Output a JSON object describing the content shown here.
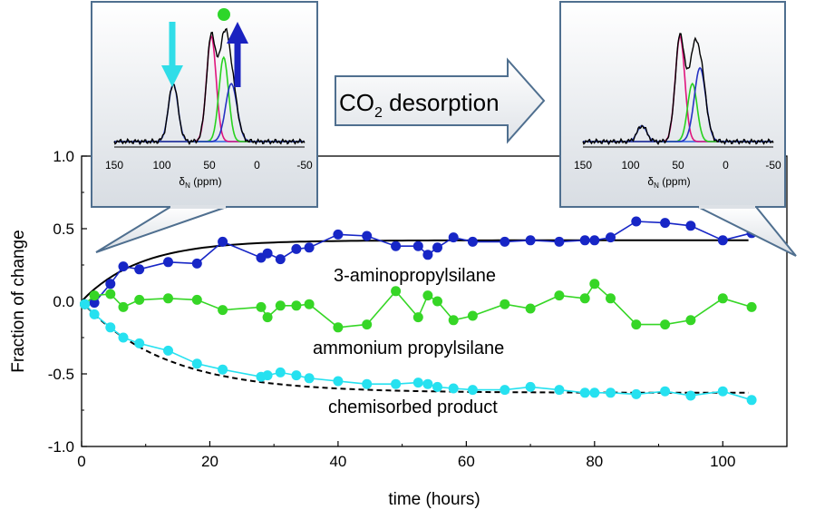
{
  "chart_data": {
    "type": "scatter",
    "xlabel": "time (hours)",
    "ylabel": "Fraction of change",
    "xlim": [
      0,
      110
    ],
    "ylim": [
      -1.0,
      1.0
    ],
    "xticks": [
      0,
      20,
      40,
      60,
      80,
      100
    ],
    "yticks": [
      -1.0,
      -0.5,
      0.0,
      0.5,
      1.0
    ],
    "xtick_labels": [
      "0",
      "20",
      "40",
      "60",
      "80",
      "100"
    ],
    "ytick_labels": [
      "-1.0",
      "-0.5",
      "0.0",
      "0.5",
      "1.0"
    ],
    "series": [
      {
        "name": "3-aminopropylsilane",
        "color": "#1726c6",
        "x": [
          0.5,
          2,
          4.5,
          6.5,
          9,
          13.5,
          18,
          22,
          28,
          29,
          31,
          33.5,
          35.5,
          40,
          44.5,
          49,
          52.5,
          54,
          55.5,
          58,
          61,
          66,
          70,
          74.5,
          78.5,
          80,
          82.5,
          86.5,
          91,
          95,
          100,
          104.5
        ],
        "y": [
          -0.02,
          -0.01,
          0.12,
          0.24,
          0.22,
          0.27,
          0.26,
          0.41,
          0.3,
          0.33,
          0.29,
          0.36,
          0.37,
          0.46,
          0.45,
          0.38,
          0.38,
          0.32,
          0.37,
          0.44,
          0.41,
          0.41,
          0.42,
          0.41,
          0.42,
          0.42,
          0.44,
          0.55,
          0.54,
          0.52,
          0.42,
          0.47
        ]
      },
      {
        "name": "ammonium propylsilane",
        "color": "#36d626",
        "x": [
          0.5,
          2,
          4.5,
          6.5,
          9,
          13.5,
          18,
          22,
          28,
          29,
          31,
          33.5,
          35.5,
          40,
          44.5,
          49,
          52.5,
          54,
          55.5,
          58,
          61,
          66,
          70,
          74.5,
          78.5,
          80,
          82.5,
          86.5,
          91,
          95,
          100,
          104.5
        ],
        "y": [
          -0.02,
          0.04,
          0.05,
          -0.04,
          0.01,
          0.02,
          0.01,
          -0.06,
          -0.04,
          -0.11,
          -0.03,
          -0.03,
          -0.02,
          -0.18,
          -0.16,
          0.07,
          -0.11,
          0.04,
          0.0,
          -0.13,
          -0.1,
          -0.02,
          -0.05,
          0.04,
          0.02,
          0.12,
          0.02,
          -0.16,
          -0.16,
          -0.13,
          0.02,
          -0.04
        ]
      },
      {
        "name": "chemisorbed product",
        "color": "#26e1f0",
        "x": [
          0.5,
          2,
          4.5,
          6.5,
          9,
          13.5,
          18,
          22,
          28,
          29,
          31,
          33.5,
          35.5,
          40,
          44.5,
          49,
          52.5,
          54,
          55.5,
          58,
          61,
          66,
          70,
          74.5,
          78.5,
          80,
          82.5,
          86.5,
          91,
          95,
          100,
          104.5
        ],
        "y": [
          -0.02,
          -0.09,
          -0.18,
          -0.25,
          -0.29,
          -0.34,
          -0.43,
          -0.47,
          -0.52,
          -0.51,
          -0.49,
          -0.51,
          -0.53,
          -0.55,
          -0.57,
          -0.57,
          -0.56,
          -0.57,
          -0.59,
          -0.6,
          -0.61,
          -0.61,
          -0.59,
          -0.61,
          -0.63,
          -0.63,
          -0.63,
          -0.64,
          -0.62,
          -0.65,
          -0.62,
          -0.68
        ]
      }
    ],
    "fits": [
      {
        "name": "aminopropylsilane-fit",
        "style": "solid",
        "a": 0.42,
        "tau": 9
      },
      {
        "name": "chemisorbed-fit",
        "style": "dashed",
        "a": -0.63,
        "tau": 13
      }
    ],
    "labels": {
      "aminopropylsilane": "3-aminopropylsilane",
      "ammonium": "ammonium propylsilane",
      "chemisorbed": "chemisorbed product"
    },
    "insets": [
      {
        "name": "before",
        "xlabel": "δN (ppm)",
        "xlabel_main": "δ",
        "xlabel_sub": "N",
        "xlabel_unit": "(ppm)",
        "xticks": [
          "150",
          "100",
          "50",
          "0",
          "-50"
        ],
        "xtick_values": [
          150,
          100,
          50,
          0,
          -50
        ],
        "peak_heights": [
          0.55,
          1.0,
          0.8,
          0.55
        ]
      },
      {
        "name": "after",
        "xlabel": "δN (ppm)",
        "xlabel_main": "δ",
        "xlabel_sub": "N",
        "xlabel_unit": "(ppm)",
        "xticks": [
          "150",
          "100",
          "50",
          "0",
          "-50"
        ],
        "xtick_values": [
          150,
          100,
          50,
          0,
          -50
        ],
        "peak_heights": [
          0.15,
          1.0,
          0.55,
          0.7
        ]
      }
    ],
    "arrow_label": "CO2 desorption",
    "arrow_label_main": "CO",
    "arrow_label_sub": "2",
    "arrow_label_rest": " desorption"
  }
}
